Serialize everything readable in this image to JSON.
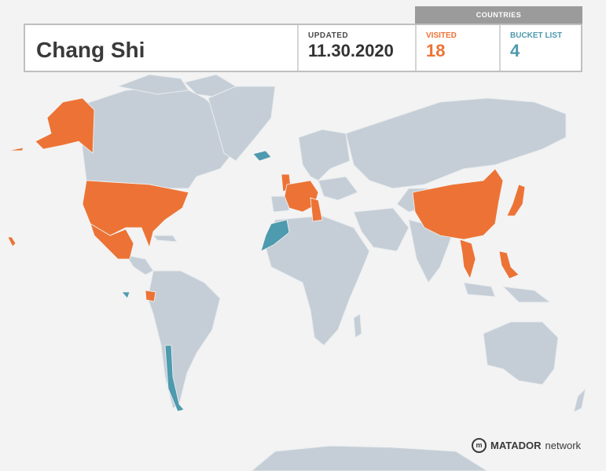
{
  "profile": {
    "name": "Chang Shi"
  },
  "updated": {
    "label": "UPDATED",
    "date": "11.30.2020"
  },
  "countries": {
    "title": "COUNTRIES",
    "visited": {
      "label": "VISITED",
      "count": "18"
    },
    "bucket_list": {
      "label": "BUCKET LIST",
      "count": "4"
    }
  },
  "logo": {
    "brand": "MATADOR",
    "suffix": "network"
  },
  "colors": {
    "visited": "#ec7335",
    "bucket_list": "#4e9aae",
    "unvisited": "#c5ced6",
    "background": "#f3f3f3"
  },
  "visited_countries": [
    "Alaska (USA)",
    "United States",
    "Mexico",
    "Ecuador",
    "United Kingdom",
    "France",
    "Belgium",
    "Netherlands",
    "Germany",
    "Switzerland",
    "Italy",
    "China",
    "Japan",
    "Thailand",
    "Philippines",
    "Vietnam",
    "Hawaii (USA)",
    "Aleutians (USA)"
  ],
  "bucket_list_countries": [
    "Iceland",
    "Morocco",
    "Chile",
    "Peru"
  ]
}
